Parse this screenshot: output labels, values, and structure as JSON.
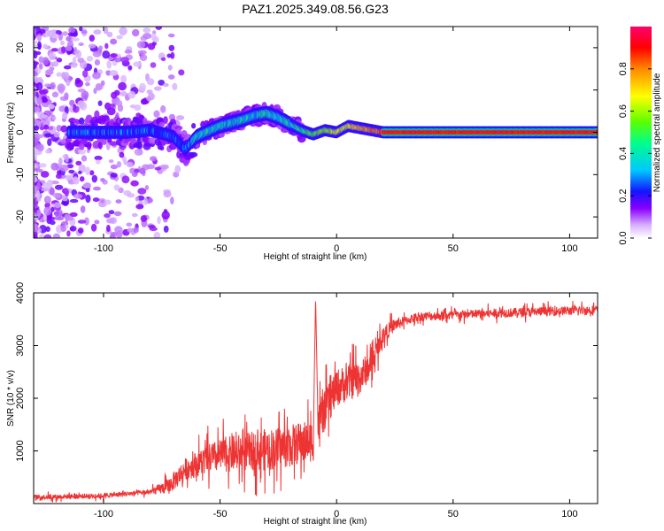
{
  "figure": {
    "title": "PAZ1.2025.349.08.56.G23"
  },
  "chart_data": [
    {
      "type": "heatmap",
      "title": "PAZ1.2025.349.08.56.G23",
      "xlabel": "Height of straight line (km)",
      "ylabel": "Frequency (Hz)",
      "xlim": [
        -130,
        112
      ],
      "ylim": [
        -25,
        25
      ],
      "xticks": [
        -100,
        -50,
        0,
        50,
        100
      ],
      "yticks": [
        -20,
        -10,
        0,
        10,
        20
      ],
      "colorbar": {
        "label": "Normalized spectral amplitude",
        "range": [
          0,
          1
        ],
        "ticks": [
          0.0,
          0.2,
          0.4,
          0.6,
          0.8
        ]
      },
      "ridge": {
        "x": [
          -100,
          -90,
          -80,
          -70,
          -65,
          -60,
          -50,
          -40,
          -35,
          -30,
          -25,
          -20,
          -15,
          -10,
          -5,
          0,
          5,
          10,
          15,
          20,
          50,
          100,
          112
        ],
        "y": [
          0,
          0,
          0.5,
          -1,
          -4,
          -1,
          1.5,
          3,
          4,
          4.5,
          3.5,
          2,
          0.5,
          -0.5,
          0.5,
          0,
          1.5,
          1,
          0.5,
          0,
          0,
          0,
          0
        ]
      }
    },
    {
      "type": "line",
      "xlabel": "Height of straight line (km)",
      "ylabel": "SNR (10 * v/v)",
      "xlim": [
        -130,
        112
      ],
      "ylim": [
        0,
        4000
      ],
      "xticks": [
        -100,
        -50,
        0,
        50,
        100
      ],
      "yticks": [
        1000,
        2000,
        3000,
        4000
      ],
      "series": [
        {
          "name": "SNR",
          "color": "#ee3333",
          "trend_x": [
            -130,
            -100,
            -80,
            -72,
            -65,
            -55,
            -45,
            -35,
            -25,
            -15,
            -10,
            -9,
            -8,
            0,
            10,
            15,
            20,
            25,
            35,
            50,
            70,
            90,
            112
          ],
          "trend_y": [
            120,
            150,
            220,
            330,
            650,
            850,
            950,
            1000,
            1050,
            1150,
            1200,
            3950,
            1500,
            2200,
            2400,
            2650,
            3200,
            3400,
            3550,
            3580,
            3620,
            3650,
            3680
          ],
          "noise_x": [
            -130,
            -80,
            -70,
            -50,
            -30,
            -10,
            0,
            10,
            20,
            30,
            112
          ],
          "noise_amp": [
            60,
            60,
            220,
            400,
            500,
            500,
            450,
            420,
            200,
            110,
            110
          ]
        }
      ]
    }
  ]
}
